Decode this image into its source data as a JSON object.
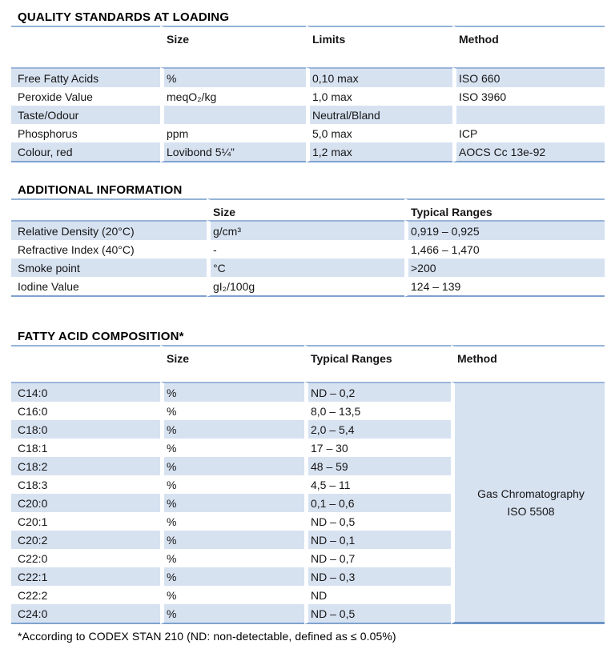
{
  "colors": {
    "row_band": "#D7E2F1",
    "rule_blue": "#95B3D7",
    "rule_blue_dark": "#6E95C7",
    "text": "#161616"
  },
  "tables": [
    {
      "title": "QUALITY STANDARDS AT LOADING",
      "headers": [
        "",
        "Size",
        "Limits",
        "Method"
      ],
      "rows": [
        [
          "Free Fatty Acids",
          "%",
          "0,10 max",
          "ISO 660"
        ],
        [
          "Peroxide Value",
          "meqO₂/kg",
          "1,0 max",
          "ISO 3960"
        ],
        [
          "Taste/Odour",
          "",
          "Neutral/Bland",
          ""
        ],
        [
          "Phosphorus",
          "ppm",
          "5,0 max",
          "ICP"
        ],
        [
          "Colour, red",
          "Lovibond 5¼”",
          "1,2 max",
          "AOCS Cc 13e-92"
        ]
      ]
    },
    {
      "title": "ADDITIONAL INFORMATION",
      "headers": [
        "",
        "Size",
        "Typical Ranges"
      ],
      "rows": [
        [
          "Relative Density (20°C)",
          "g/cm³",
          "0,919 – 0,925"
        ],
        [
          "Refractive Index (40°C)",
          "-",
          "1,466 – 1,470"
        ],
        [
          "Smoke point",
          "°C",
          ">200"
        ],
        [
          "Iodine Value",
          "gI₂/100g",
          "124 – 139"
        ]
      ]
    },
    {
      "title": "FATTY ACID COMPOSITION*",
      "headers": [
        "",
        "Size",
        "Typical Ranges",
        "Method"
      ],
      "method_merged": [
        "Gas Chromatography",
        "ISO 5508"
      ],
      "rows": [
        [
          "C14:0",
          "%",
          "ND – 0,2"
        ],
        [
          "C16:0",
          "%",
          "8,0 – 13,5"
        ],
        [
          "C18:0",
          "%",
          "2,0 – 5,4"
        ],
        [
          "C18:1",
          "%",
          "17 – 30"
        ],
        [
          "C18:2",
          "%",
          "48 – 59"
        ],
        [
          "C18:3",
          "%",
          "4,5 – 11"
        ],
        [
          "C20:0",
          "%",
          "0,1 – 0,6"
        ],
        [
          "C20:1",
          "%",
          "ND – 0,5"
        ],
        [
          "C20:2",
          "%",
          "ND – 0,1"
        ],
        [
          "C22:0",
          "%",
          "ND – 0,7"
        ],
        [
          "C22:1",
          "%",
          "ND – 0,3"
        ],
        [
          "C22:2",
          "%",
          "ND"
        ],
        [
          "C24:0",
          "%",
          "ND – 0,5"
        ]
      ]
    }
  ],
  "footnote": "*According to CODEX STAN 210 (ND: non-detectable, defined as ≤ 0.05%)"
}
